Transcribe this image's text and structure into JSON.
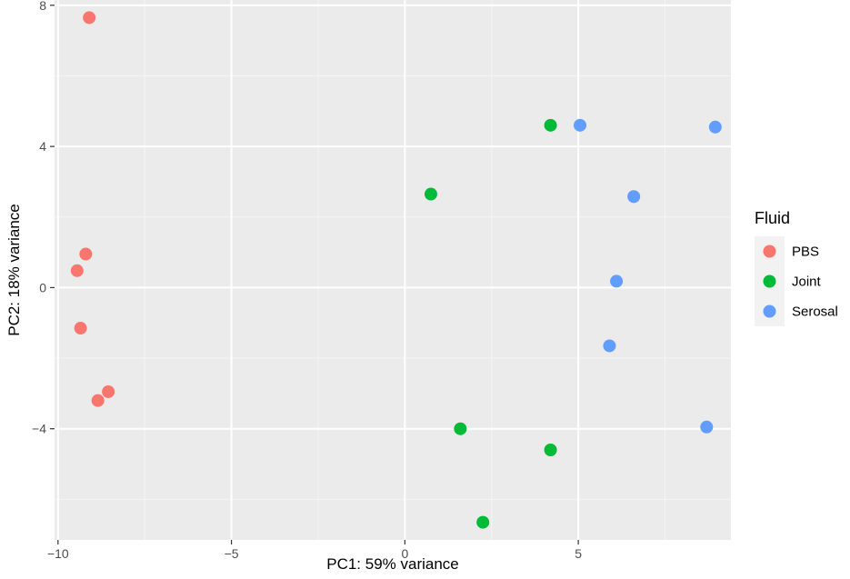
{
  "chart_data": {
    "type": "scatter",
    "xlabel": "PC1: 59% variance",
    "ylabel": "PC2: 18% variance",
    "xlim": [
      -10.1,
      9.4
    ],
    "ylim": [
      -7.15,
      8.15
    ],
    "x_ticks": [
      -10,
      -5,
      0,
      5
    ],
    "y_ticks": [
      8,
      4,
      0,
      -4
    ],
    "x_tick_labels": [
      "−10",
      "−5",
      "0",
      "5"
    ],
    "y_tick_labels": [
      "8",
      "4",
      "0",
      "−4"
    ],
    "grid": true,
    "legend": {
      "title": "Fluid",
      "placement": "right"
    },
    "series": [
      {
        "name": "PBS",
        "color": "#F8766D",
        "points": [
          {
            "x": -9.1,
            "y": 7.65
          },
          {
            "x": -9.2,
            "y": 0.95
          },
          {
            "x": -9.45,
            "y": 0.48
          },
          {
            "x": -9.35,
            "y": -1.15
          },
          {
            "x": -8.55,
            "y": -2.95
          },
          {
            "x": -8.85,
            "y": -3.2
          }
        ]
      },
      {
        "name": "Joint",
        "color": "#00BA38",
        "points": [
          {
            "x": 4.2,
            "y": 4.6
          },
          {
            "x": 0.75,
            "y": 2.65
          },
          {
            "x": 1.6,
            "y": -4.0
          },
          {
            "x": 4.2,
            "y": -4.6
          },
          {
            "x": 2.25,
            "y": -6.65
          }
        ]
      },
      {
        "name": "Serosal",
        "color": "#619CFF",
        "points": [
          {
            "x": 5.05,
            "y": 4.6
          },
          {
            "x": 8.95,
            "y": 4.55
          },
          {
            "x": 6.6,
            "y": 2.58
          },
          {
            "x": 6.1,
            "y": 0.18
          },
          {
            "x": 5.9,
            "y": -1.65
          },
          {
            "x": 8.7,
            "y": -3.95
          }
        ]
      }
    ]
  }
}
